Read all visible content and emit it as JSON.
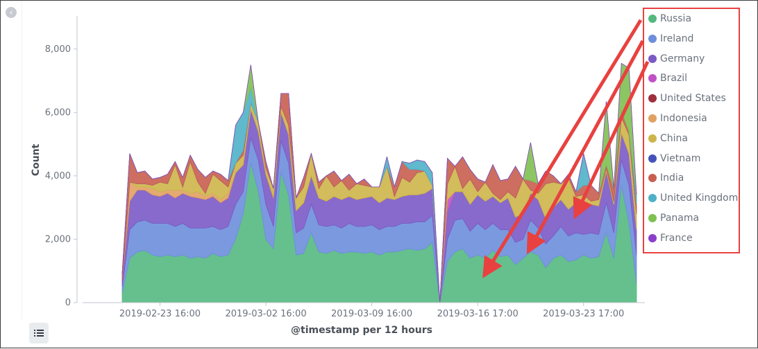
{
  "ui": {
    "collapse_icon": "chevron-left-icon",
    "legend_toggle_icon": "list-icon",
    "annotation_color": "#e8413f"
  },
  "chart_data": {
    "type": "area",
    "stacked": true,
    "title": "",
    "xlabel": "@timestamp per 12 hours",
    "ylabel": "Count",
    "ylim": [
      0,
      9000
    ],
    "yticks": [
      0,
      2000,
      4000,
      6000,
      8000
    ],
    "ytick_labels": [
      "0",
      "2,000",
      "4,000",
      "6,000",
      "8,000"
    ],
    "xtick_labels": [
      "2019-02-23 16:00",
      "2019-03-02 16:00",
      "2019-03-09 16:00",
      "2019-03-16 17:00",
      "2019-03-23 17:00"
    ],
    "xtick_index": [
      5,
      19,
      33,
      47,
      61
    ],
    "grid": false,
    "legend_position": "right",
    "x": [
      "2019-02-21 04:00",
      "2019-02-21 16:00",
      "2019-02-22 04:00",
      "2019-02-22 16:00",
      "2019-02-23 04:00",
      "2019-02-23 16:00",
      "2019-02-24 04:00",
      "2019-02-24 16:00",
      "2019-02-25 04:00",
      "2019-02-25 16:00",
      "2019-02-26 04:00",
      "2019-02-26 16:00",
      "2019-02-27 04:00",
      "2019-02-27 16:00",
      "2019-02-28 04:00",
      "2019-02-28 16:00",
      "2019-03-01 04:00",
      "2019-03-01 16:00",
      "2019-03-02 04:00",
      "2019-03-02 16:00",
      "2019-03-03 04:00",
      "2019-03-03 16:00",
      "2019-03-04 04:00",
      "2019-03-04 16:00",
      "2019-03-05 04:00",
      "2019-03-05 16:00",
      "2019-03-06 04:00",
      "2019-03-06 16:00",
      "2019-03-07 04:00",
      "2019-03-07 16:00",
      "2019-03-08 04:00",
      "2019-03-08 16:00",
      "2019-03-09 04:00",
      "2019-03-09 16:00",
      "2019-03-10 04:00",
      "2019-03-10 16:00",
      "2019-03-11 04:00",
      "2019-03-11 16:00",
      "2019-03-12 04:00",
      "2019-03-12 16:00",
      "2019-03-13 04:00",
      "2019-03-13 16:00",
      "2019-03-14 05:00",
      "2019-03-14 17:00",
      "2019-03-15 05:00",
      "2019-03-15 17:00",
      "2019-03-16 05:00",
      "2019-03-16 17:00",
      "2019-03-17 05:00",
      "2019-03-17 17:00",
      "2019-03-18 05:00",
      "2019-03-18 17:00",
      "2019-03-19 05:00",
      "2019-03-19 17:00",
      "2019-03-20 05:00",
      "2019-03-20 17:00",
      "2019-03-21 05:00",
      "2019-03-21 17:00",
      "2019-03-22 05:00",
      "2019-03-22 17:00",
      "2019-03-23 05:00",
      "2019-03-23 17:00",
      "2019-03-24 05:00",
      "2019-03-24 17:00",
      "2019-03-25 05:00",
      "2019-03-25 17:00",
      "2019-03-26 05:00",
      "2019-03-26 17:00",
      "2019-03-27 05:00"
    ],
    "series": [
      {
        "name": "Russia",
        "color": "#54b981",
        "values": [
          300,
          1400,
          1600,
          1650,
          1500,
          1450,
          1500,
          1450,
          1500,
          1400,
          1450,
          1400,
          1550,
          1450,
          1500,
          2000,
          2800,
          4400,
          3500,
          2000,
          1700,
          4100,
          3400,
          1500,
          1550,
          2200,
          1600,
          1550,
          1650,
          1550,
          1600,
          1600,
          1550,
          1600,
          1500,
          1600,
          1600,
          1650,
          1700,
          1650,
          1700,
          1900,
          0,
          1300,
          1600,
          1700,
          1400,
          1500,
          1400,
          1650,
          1450,
          1500,
          1200,
          1400,
          1600,
          1500,
          1100,
          1400,
          1500,
          1300,
          1350,
          1500,
          1400,
          1450,
          2200,
          1400,
          3700,
          2500,
          600
        ]
      },
      {
        "name": "Ireland",
        "color": "#6d8edb",
        "values": [
          200,
          900,
          950,
          950,
          1000,
          1050,
          1000,
          950,
          1000,
          950,
          900,
          950,
          850,
          850,
          900,
          1100,
          700,
          800,
          1000,
          1100,
          700,
          1000,
          1000,
          700,
          800,
          900,
          850,
          850,
          800,
          800,
          900,
          800,
          850,
          850,
          800,
          800,
          800,
          850,
          800,
          900,
          850,
          850,
          0,
          700,
          1000,
          950,
          850,
          1000,
          900,
          850,
          850,
          800,
          700,
          600,
          1000,
          850,
          750,
          700,
          900,
          800,
          850,
          650,
          800,
          700,
          950,
          800,
          800,
          1200,
          900
        ]
      },
      {
        "name": "Germany",
        "color": "#7a5ac5",
        "values": [
          200,
          900,
          1000,
          950,
          900,
          850,
          950,
          900,
          950,
          1000,
          950,
          900,
          950,
          850,
          900,
          1000,
          850,
          900,
          900,
          950,
          900,
          900,
          900,
          700,
          800,
          900,
          850,
          800,
          900,
          900,
          850,
          850,
          900,
          900,
          850,
          900,
          850,
          850,
          900,
          850,
          900,
          850,
          0,
          850,
          900,
          850,
          850,
          900,
          900,
          850,
          850,
          1000,
          800,
          800,
          850,
          900,
          800,
          900,
          850,
          850,
          950,
          850,
          900,
          900,
          1000,
          900,
          850,
          1000,
          800
        ]
      },
      {
        "name": "Brazil",
        "color": "#c152c5",
        "values": [
          0,
          0,
          0,
          0,
          0,
          0,
          0,
          0,
          0,
          0,
          0,
          0,
          0,
          0,
          0,
          0,
          0,
          0,
          0,
          0,
          0,
          0,
          0,
          0,
          0,
          0,
          0,
          0,
          0,
          0,
          0,
          0,
          0,
          0,
          0,
          0,
          0,
          0,
          0,
          0,
          0,
          0,
          0,
          400,
          0,
          0,
          0,
          0,
          0,
          0,
          0,
          0,
          0,
          0,
          0,
          0,
          0,
          0,
          0,
          0,
          0,
          0,
          0,
          0,
          0,
          0,
          0,
          0,
          0
        ]
      },
      {
        "name": "United States",
        "color": "#9e2f3c",
        "values": [
          0,
          0,
          0,
          0,
          0,
          0,
          0,
          0,
          0,
          0,
          0,
          0,
          0,
          0,
          0,
          0,
          0,
          0,
          0,
          0,
          0,
          0,
          0,
          0,
          0,
          0,
          0,
          0,
          0,
          0,
          0,
          0,
          0,
          0,
          0,
          0,
          0,
          0,
          0,
          0,
          0,
          0,
          0,
          0,
          0,
          0,
          0,
          0,
          0,
          0,
          0,
          0,
          0,
          0,
          0,
          0,
          0,
          0,
          0,
          0,
          0,
          0,
          0,
          0,
          0,
          0,
          0,
          0,
          0
        ]
      },
      {
        "name": "Indonesia",
        "color": "#e0a162",
        "values": [
          0,
          600,
          100,
          100,
          200,
          150,
          100,
          250,
          100,
          100,
          200,
          100,
          100,
          100,
          150,
          0,
          0,
          0,
          0,
          0,
          0,
          0,
          0,
          0,
          0,
          0,
          0,
          0,
          0,
          0,
          0,
          0,
          0,
          0,
          0,
          0,
          0,
          0,
          0,
          0,
          0,
          0,
          0,
          0,
          0,
          0,
          0,
          0,
          0,
          0,
          0,
          0,
          0,
          0,
          0,
          0,
          0,
          0,
          0,
          0,
          0,
          0,
          0,
          0,
          0,
          0,
          0,
          0,
          0
        ]
      },
      {
        "name": "China",
        "color": "#cdb54a",
        "values": [
          0,
          0,
          100,
          100,
          100,
          300,
          200,
          800,
          100,
          1000,
          300,
          100,
          600,
          600,
          200,
          300,
          300,
          200,
          300,
          200,
          300,
          200,
          300,
          400,
          500,
          700,
          300,
          800,
          300,
          600,
          200,
          500,
          400,
          300,
          500,
          1000,
          100,
          600,
          400,
          700,
          700,
          100,
          0,
          500,
          800,
          100,
          800,
          100,
          600,
          100,
          100,
          200,
          600,
          1100,
          100,
          200,
          1100,
          800,
          500,
          1000,
          200,
          400,
          100,
          200,
          100,
          100,
          500,
          600,
          500
        ]
      },
      {
        "name": "Vietnam",
        "color": "#4453b9",
        "values": [
          0,
          0,
          0,
          0,
          0,
          0,
          0,
          0,
          0,
          0,
          0,
          0,
          0,
          0,
          0,
          0,
          0,
          0,
          0,
          0,
          0,
          0,
          0,
          0,
          0,
          0,
          0,
          0,
          0,
          0,
          0,
          0,
          0,
          0,
          0,
          0,
          0,
          0,
          0,
          0,
          0,
          0,
          0,
          0,
          0,
          0,
          0,
          0,
          0,
          0,
          0,
          0,
          0,
          0,
          0,
          0,
          0,
          0,
          0,
          0,
          0,
          0,
          0,
          0,
          0,
          0,
          0,
          0,
          0
        ]
      },
      {
        "name": "India",
        "color": "#c85e4f",
        "values": [
          200,
          900,
          350,
          400,
          200,
          150,
          300,
          100,
          300,
          200,
          400,
          500,
          100,
          200,
          200,
          0,
          150,
          0,
          0,
          200,
          0,
          400,
          1000,
          0,
          300,
          0,
          200,
          0,
          500,
          0,
          500,
          0,
          200,
          0,
          0,
          0,
          300,
          500,
          400,
          100,
          0,
          0,
          0,
          800,
          0,
          1000,
          300,
          400,
          0,
          900,
          600,
          400,
          1000,
          0,
          300,
          300,
          400,
          200,
          0,
          100,
          150,
          300,
          500,
          200,
          100,
          400,
          200,
          100,
          300
        ]
      },
      {
        "name": "United Kingdom",
        "color": "#4fb1c7",
        "values": [
          0,
          0,
          0,
          0,
          0,
          0,
          0,
          0,
          0,
          0,
          0,
          0,
          0,
          0,
          0,
          1200,
          1200,
          500,
          0,
          0,
          0,
          0,
          0,
          0,
          0,
          0,
          0,
          0,
          0,
          0,
          0,
          0,
          0,
          0,
          0,
          300,
          0,
          0,
          200,
          300,
          300,
          400,
          0,
          0,
          0,
          0,
          0,
          0,
          0,
          0,
          0,
          0,
          0,
          0,
          0,
          0,
          0,
          0,
          0,
          0,
          0,
          1000,
          0,
          0,
          0,
          0,
          0,
          0,
          300
        ]
      },
      {
        "name": "Panama",
        "color": "#7ec052",
        "values": [
          0,
          0,
          0,
          0,
          0,
          0,
          0,
          0,
          0,
          0,
          0,
          0,
          0,
          0,
          0,
          0,
          0,
          700,
          0,
          0,
          0,
          0,
          0,
          0,
          0,
          0,
          0,
          0,
          0,
          0,
          0,
          0,
          0,
          0,
          0,
          0,
          0,
          0,
          0,
          0,
          0,
          0,
          0,
          0,
          0,
          0,
          0,
          0,
          0,
          0,
          0,
          0,
          0,
          0,
          1200,
          0,
          0,
          0,
          0,
          0,
          0,
          0,
          0,
          0,
          2000,
          0,
          1500,
          2000,
          0
        ]
      },
      {
        "name": "France",
        "color": "#8b3fc9",
        "values": [
          0,
          0,
          0,
          0,
          0,
          0,
          0,
          0,
          0,
          0,
          0,
          0,
          0,
          0,
          0,
          0,
          0,
          0,
          0,
          0,
          0,
          0,
          0,
          0,
          0,
          0,
          0,
          0,
          0,
          0,
          0,
          0,
          0,
          0,
          0,
          0,
          0,
          0,
          0,
          0,
          0,
          0,
          0,
          0,
          0,
          0,
          0,
          0,
          0,
          0,
          0,
          0,
          0,
          0,
          0,
          0,
          0,
          0,
          0,
          0,
          0,
          0,
          0,
          0,
          0,
          0,
          0,
          0,
          0
        ]
      }
    ],
    "extra_top": [
      0,
      0,
      0,
      0,
      0,
      0,
      0,
      0,
      0,
      0,
      0,
      0,
      0,
      0,
      0,
      0,
      0,
      0,
      0,
      0,
      0,
      0,
      0,
      0,
      0,
      0,
      0,
      0,
      0,
      0,
      0,
      0,
      0,
      0,
      0,
      0,
      0,
      0,
      0,
      0,
      0,
      0,
      0,
      0,
      0,
      0,
      0,
      0,
      0,
      0,
      0,
      0,
      0,
      0,
      0,
      0,
      0,
      0,
      0,
      0,
      0,
      0,
      0,
      0,
      0,
      0,
      0,
      0,
      0
    ]
  }
}
